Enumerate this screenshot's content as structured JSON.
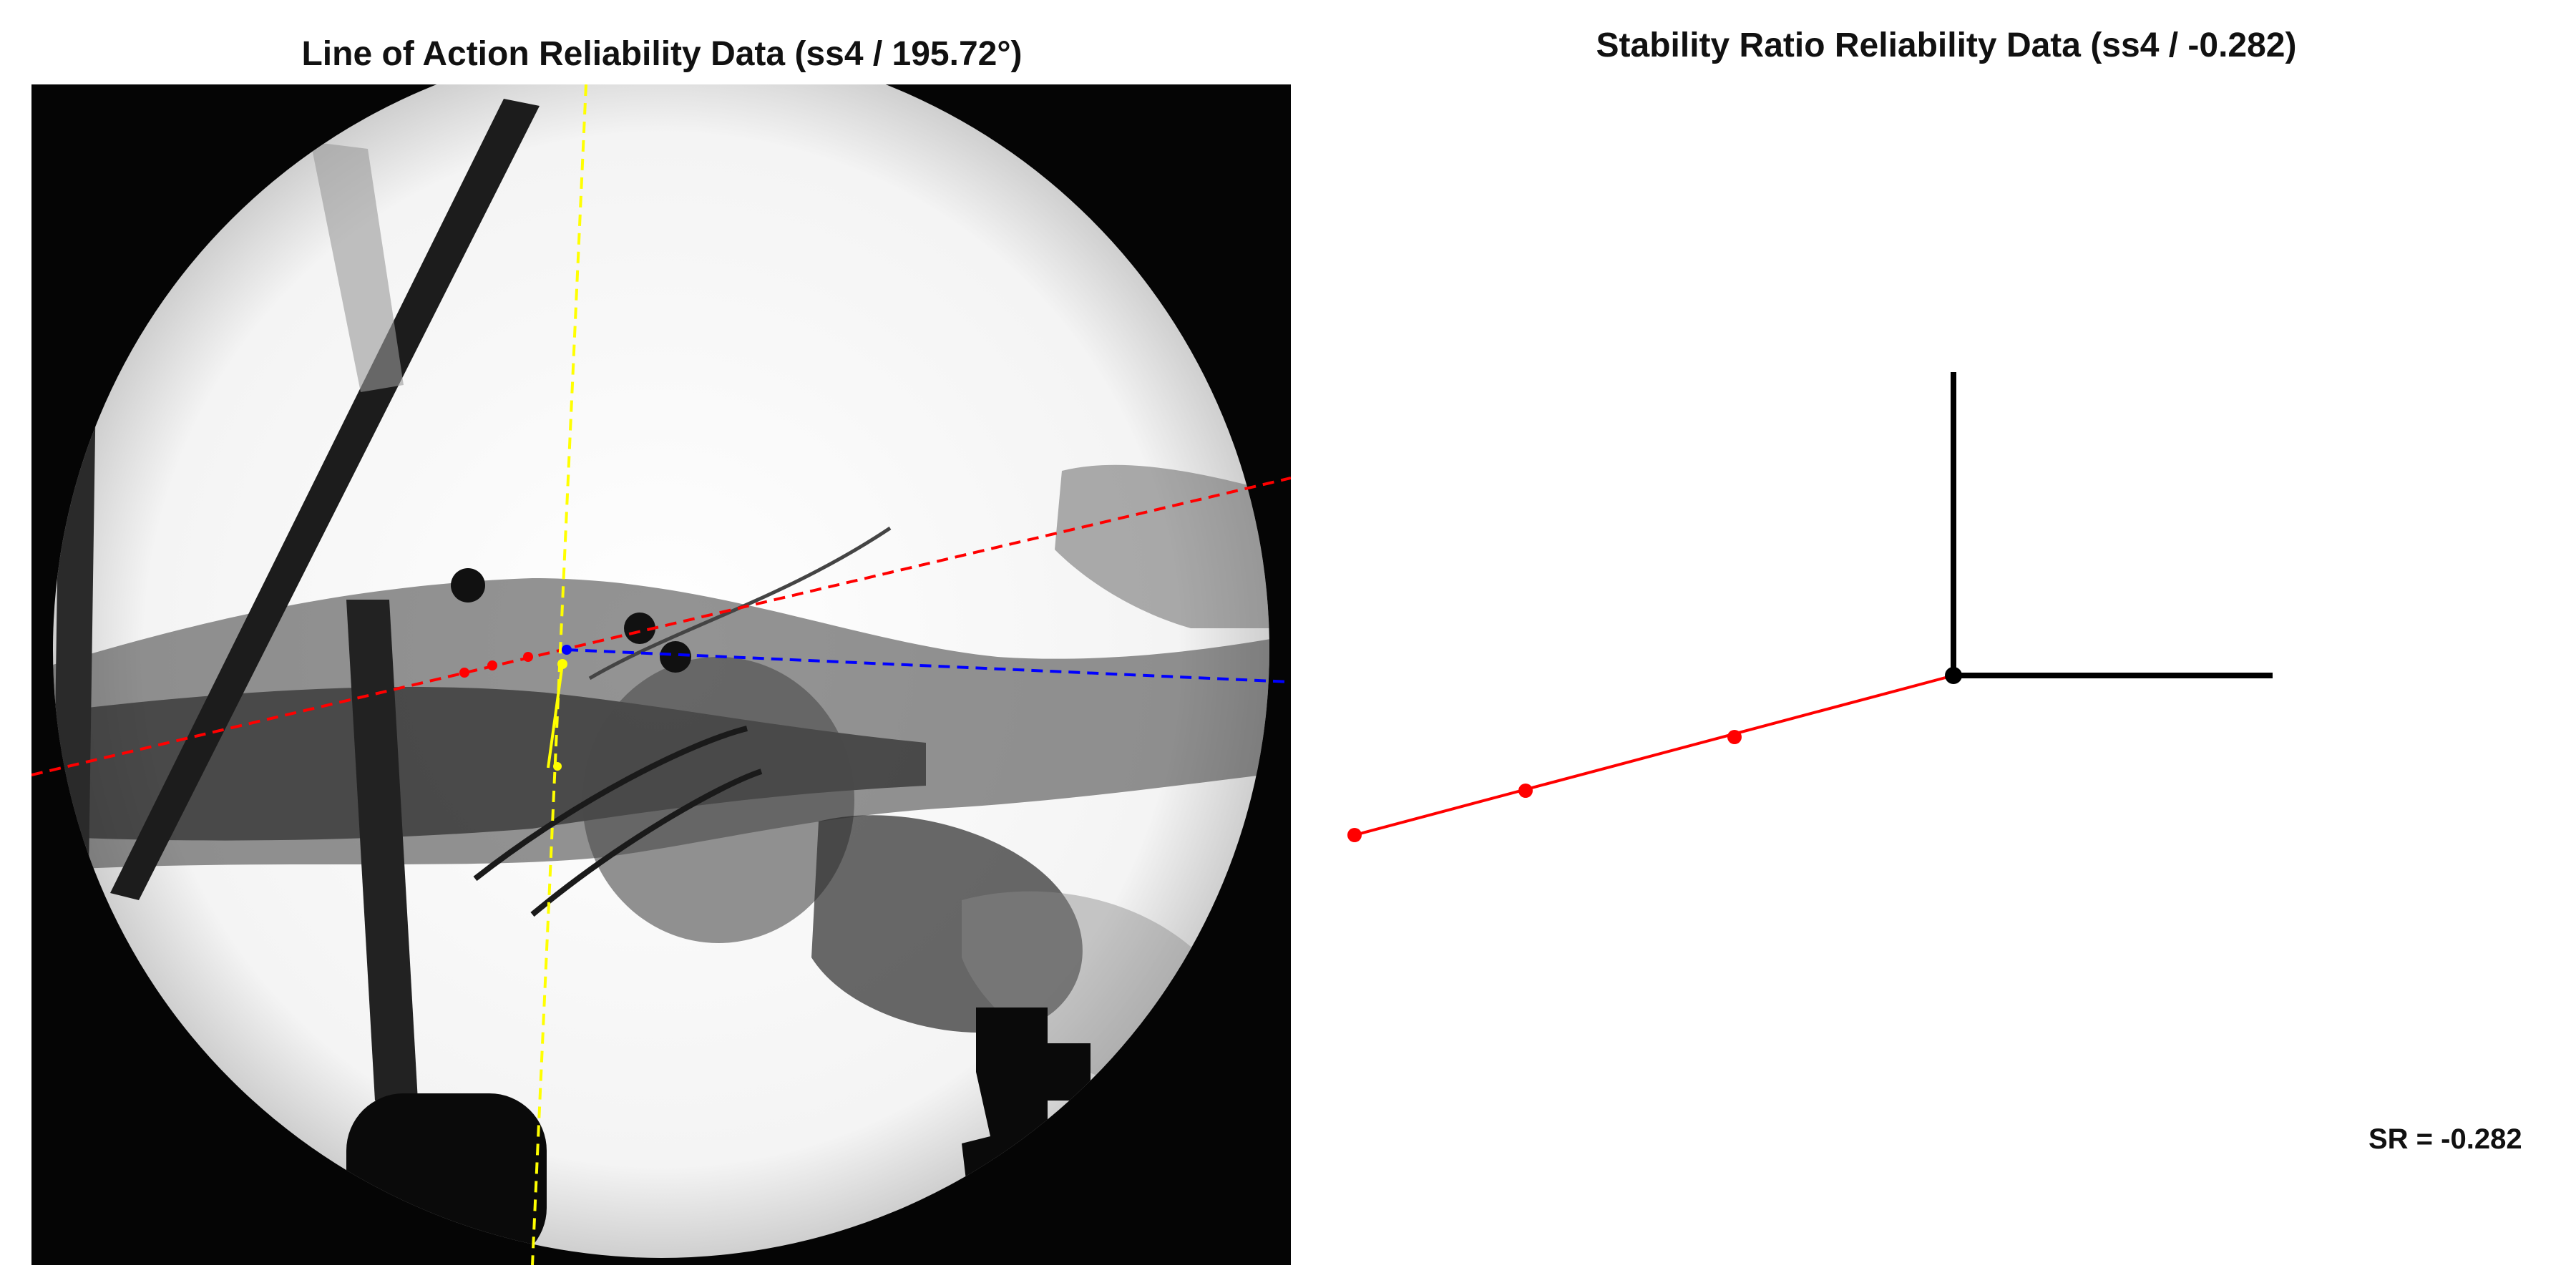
{
  "left_panel": {
    "title": "Line of Action Reliability Data (ss4 / 195.72°)",
    "lines": {
      "red": {
        "color": "#ff0000",
        "style": "dashed"
      },
      "blue": {
        "color": "#0000ff",
        "style": "dashed"
      },
      "yellow": {
        "color": "#ffff00",
        "style": "dashed"
      }
    },
    "marker_colors": {
      "red": "#ff0000",
      "yellow": "#ffff00",
      "blue": "#0000ff"
    }
  },
  "right_panel": {
    "title": "Stability Ratio Reliability Data (ss4 / -0.282)",
    "stability_ratio": -0.282,
    "sr_label": "SR = -0.282",
    "colors": {
      "axes": "#000000",
      "line": "#ff0000"
    }
  }
}
